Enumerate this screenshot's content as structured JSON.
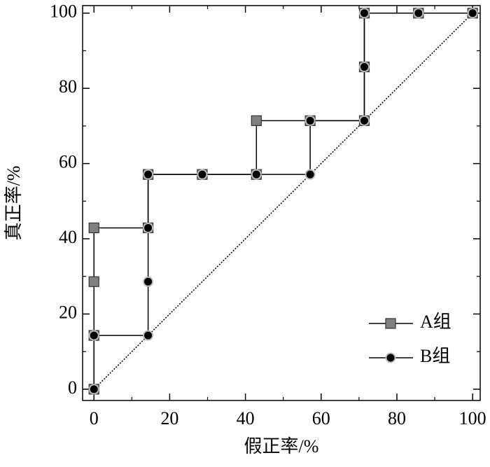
{
  "chart_data": {
    "type": "line",
    "xlabel": "假正率/%",
    "ylabel": "真正率/%",
    "xlim": [
      -3,
      102
    ],
    "ylim": [
      -3,
      102
    ],
    "xticks": [
      0,
      20,
      40,
      60,
      80,
      100
    ],
    "yticks": [
      0,
      20,
      40,
      60,
      80,
      100
    ],
    "legend": "lower right",
    "series": [
      {
        "name": "A组",
        "color": "#808080",
        "marker": "square",
        "x": [
          0,
          0,
          0,
          0,
          14.3,
          14.3,
          28.6,
          42.9,
          42.9,
          57.1,
          71.4,
          71.4,
          71.4,
          85.7,
          100
        ],
        "values": [
          0,
          14.3,
          28.6,
          42.9,
          42.9,
          57.1,
          57.1,
          57.1,
          71.4,
          71.4,
          71.4,
          85.7,
          100,
          100,
          100
        ]
      },
      {
        "name": "B组",
        "color": "#000000",
        "marker": "circle",
        "x": [
          0,
          0,
          14.3,
          14.3,
          14.3,
          14.3,
          28.6,
          42.9,
          57.1,
          57.1,
          71.4,
          71.4,
          71.4,
          85.7,
          100
        ],
        "values": [
          0,
          14.3,
          14.3,
          28.6,
          42.9,
          57.1,
          57.1,
          57.1,
          57.1,
          71.4,
          71.4,
          85.7,
          100,
          100,
          100
        ]
      }
    ]
  }
}
